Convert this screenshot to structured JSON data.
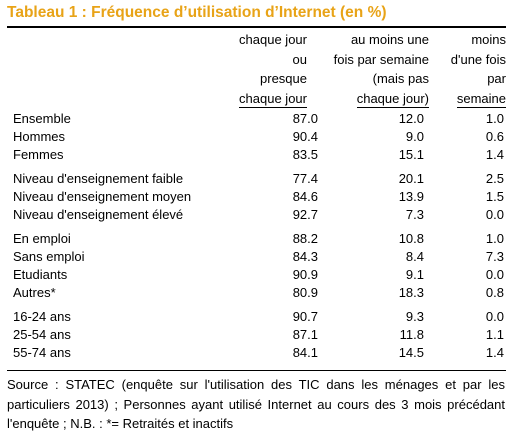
{
  "title": "Tableau 1 : Fréquence d’utilisation d’Internet (en %)",
  "headers": {
    "col1": [
      "chaque jour",
      "ou",
      "presque",
      "chaque jour"
    ],
    "col2": [
      "au moins une",
      "fois par semaine",
      "(mais pas",
      "chaque jour)"
    ],
    "col3": [
      "moins",
      "d'une fois",
      "par",
      "semaine"
    ]
  },
  "rows": [
    {
      "label": "Ensemble",
      "v1": "87.0",
      "v2": "12.0",
      "v3": "1.0"
    },
    {
      "label": "Hommes",
      "v1": "90.4",
      "v2": "9.0",
      "v3": "0.6"
    },
    {
      "label": "Femmes",
      "v1": "83.5",
      "v2": "15.1",
      "v3": "1.4"
    },
    {
      "label": "Niveau d'enseignement faible",
      "v1": "77.4",
      "v2": "20.1",
      "v3": "2.5"
    },
    {
      "label": "Niveau d'enseignement moyen",
      "v1": "84.6",
      "v2": "13.9",
      "v3": "1.5"
    },
    {
      "label": "Niveau d'enseignement élevé",
      "v1": "92.7",
      "v2": "7.3",
      "v3": "0.0"
    },
    {
      "label": "En emploi",
      "v1": "88.2",
      "v2": "10.8",
      "v3": "1.0"
    },
    {
      "label": "Sans emploi",
      "v1": "84.3",
      "v2": "8.4",
      "v3": "7.3"
    },
    {
      "label": "Etudiants",
      "v1": "90.9",
      "v2": "9.1",
      "v3": "0.0"
    },
    {
      "label": "Autres*",
      "v1": "80.9",
      "v2": "18.3",
      "v3": "0.8"
    },
    {
      "label": "16-24 ans",
      "v1": "90.7",
      "v2": "9.3",
      "v3": "0.0"
    },
    {
      "label": "25-54 ans",
      "v1": "87.1",
      "v2": "11.8",
      "v3": "1.1"
    },
    {
      "label": "55-74 ans",
      "v1": "84.1",
      "v2": "14.5",
      "v3": "1.4"
    }
  ],
  "source": "Source : STATEC (enquête sur l'utilisation des TIC dans les ménages et par les particuliers 2013) ; Personnes ayant utilisé Internet au cours des 3 mois précédant l'enquête ; N.B. : *= Retraités et inactifs",
  "colors": {
    "title": "#e8a317"
  }
}
